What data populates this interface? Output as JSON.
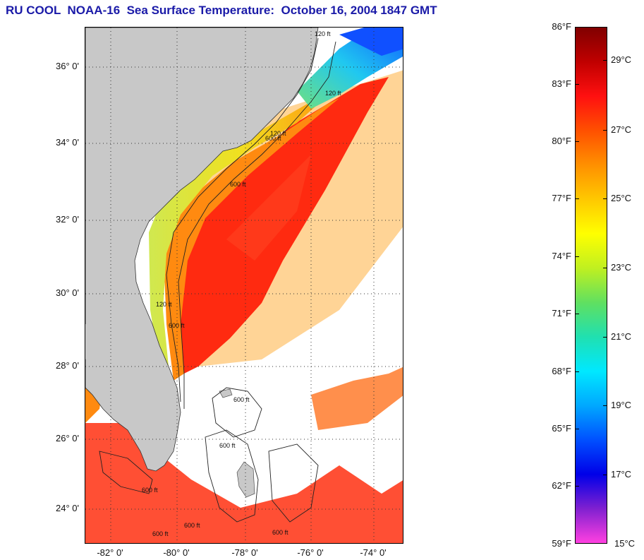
{
  "title": "RU COOL  NOAA-16  Sea Surface Temperature:  October 16, 2004 1847 GMT",
  "map": {
    "latitude_labels": [
      "36° 0'",
      "34° 0'",
      "32° 0'",
      "30° 0'",
      "28° 0'",
      "26° 0'",
      "24° 0'"
    ],
    "longitude_labels": [
      "-82° 0'",
      "-80° 0'",
      "-78° 0'",
      "-76° 0'",
      "-74° 0'"
    ],
    "contour_labels": [
      "120 ft",
      "120 ft",
      "600 ft",
      "600 ft",
      "120 ft",
      "120 ft",
      "600 ft",
      "600 ft",
      "600 ft",
      "600 ft",
      "600 ft",
      "600 ft",
      "600 ft"
    ],
    "colors": {
      "land": "#c8c8c8",
      "cloud": "#ffffff",
      "gulf_stream": "#ff2a10",
      "shelf_green": "#b8e040",
      "cold_cyan": "#20d8f0"
    }
  },
  "colorbar": {
    "fahrenheit_labels": [
      "86°F",
      "83°F",
      "80°F",
      "77°F",
      "74°F",
      "71°F",
      "68°F",
      "65°F",
      "62°F",
      "59°F"
    ],
    "celsius_labels": [
      "29°C",
      "27°C",
      "25°C",
      "23°C",
      "21°C",
      "19°C",
      "17°C",
      "15°C"
    ],
    "gradient_colors": [
      "#800000",
      "#c00000",
      "#ff1010",
      "#ff5000",
      "#ff9000",
      "#ffc800",
      "#ffff00",
      "#c0f020",
      "#60e060",
      "#20e0b0",
      "#00e8ff",
      "#00a8ff",
      "#0050ff",
      "#0000e8",
      "#8020d0",
      "#ff40e0"
    ]
  }
}
